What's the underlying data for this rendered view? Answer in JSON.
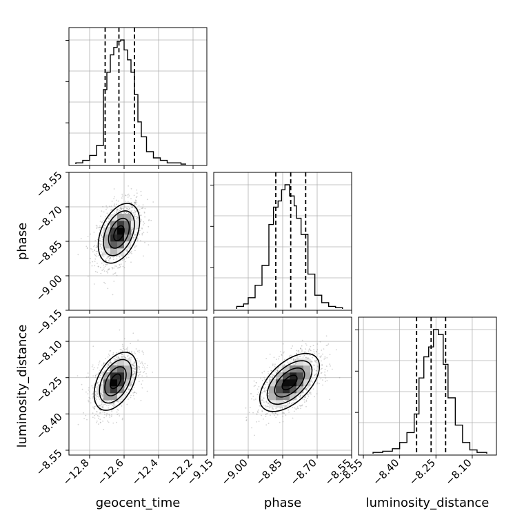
{
  "chart_data": {
    "type": "corner",
    "parameters": [
      {
        "name": "geocent_time",
        "axis_label": "geocent_time",
        "range": [
          -12.92,
          -12.12
        ],
        "ticks": [
          -12.8,
          -12.6,
          -12.4,
          -12.2
        ],
        "tick_labels": [
          "−12.8",
          "−12.6",
          "−12.4",
          "−12.2"
        ],
        "quantiles": [
          -12.71,
          -12.63,
          -12.54
        ],
        "histogram": {
          "bin_edges": [
            -12.88,
            -12.84,
            -12.8,
            -12.76,
            -12.72,
            -12.7,
            -12.68,
            -12.66,
            -12.64,
            -12.62,
            -12.6,
            -12.58,
            -12.56,
            -12.54,
            -12.52,
            -12.5,
            -12.47,
            -12.43,
            -12.39,
            -12.35,
            -12.31,
            -12.27,
            -12.24
          ],
          "counts": [
            1,
            3,
            7,
            15,
            60,
            74,
            88,
            94,
            99,
            100,
            92,
            84,
            74,
            56,
            34,
            22,
            10,
            5,
            3,
            1,
            1,
            0
          ]
        }
      },
      {
        "name": "phase",
        "axis_label": "phase",
        "range": [
          -9.15,
          -8.55
        ],
        "ticks": [
          -9.15,
          -9.0,
          -8.85,
          -8.7,
          -8.55
        ],
        "tick_labels": [
          "−9.15",
          "−9.00",
          "−8.85",
          "−8.70",
          "−8.55"
        ],
        "quantiles": [
          -8.88,
          -8.815,
          -8.75
        ],
        "histogram": {
          "bin_edges": [
            -9.05,
            -9.02,
            -9.0,
            -8.97,
            -8.94,
            -8.91,
            -8.89,
            -8.87,
            -8.855,
            -8.84,
            -8.82,
            -8.8,
            -8.79,
            -8.77,
            -8.74,
            -8.71,
            -8.68,
            -8.65,
            -8.62,
            -8.59
          ],
          "counts": [
            2,
            4,
            9,
            19,
            35,
            68,
            82,
            87,
            96,
            100,
            91,
            83,
            73,
            60,
            28,
            11,
            5,
            2,
            1
          ]
        }
      },
      {
        "name": "luminosity_distance",
        "axis_label": "luminosity_distance",
        "range": [
          -8.57,
          -8.0
        ],
        "ticks": [
          -8.55,
          -8.4,
          -8.25,
          -8.1
        ],
        "tick_labels": [
          "−8.55",
          "−8.40",
          "−8.25",
          "−8.10"
        ],
        "quantiles": [
          -8.33,
          -8.27,
          -8.21
        ],
        "histogram": {
          "bin_edges": [
            -8.51,
            -8.47,
            -8.43,
            -8.4,
            -8.37,
            -8.34,
            -8.32,
            -8.3,
            -8.28,
            -8.26,
            -8.24,
            -8.22,
            -8.2,
            -8.17,
            -8.14,
            -8.11,
            -8.08,
            -8.04
          ],
          "counts": [
            1,
            2,
            4,
            9,
            17,
            32,
            61,
            78,
            86,
            100,
            96,
            72,
            45,
            23,
            9,
            3,
            1
          ]
        }
      }
    ],
    "pairs": [
      {
        "x_param": "geocent_time",
        "y_param": "phase",
        "center": [
          -12.63,
          -8.815
        ],
        "sigma": [
          0.06,
          0.065
        ],
        "correlation": 0.4,
        "contour_levels_sigma": [
          0.5,
          1.0,
          1.5,
          2.0
        ]
      },
      {
        "x_param": "geocent_time",
        "y_param": "luminosity_distance",
        "center": [
          -12.65,
          -8.265
        ],
        "sigma": [
          0.062,
          0.06
        ],
        "correlation": 0.45,
        "contour_levels_sigma": [
          0.5,
          1.0,
          1.5,
          2.0
        ]
      },
      {
        "x_param": "phase",
        "y_param": "luminosity_distance",
        "center": [
          -8.82,
          -8.27
        ],
        "sigma": [
          0.065,
          0.06
        ],
        "correlation": 0.55,
        "contour_levels_sigma": [
          0.5,
          1.0,
          1.5,
          2.0
        ]
      }
    ],
    "grid": true,
    "colors": {
      "histogram_line": "#000000",
      "quantile_line": "#000000",
      "grid": "#b0b0b0",
      "scatter": "#808080",
      "contour": "#000000"
    }
  }
}
